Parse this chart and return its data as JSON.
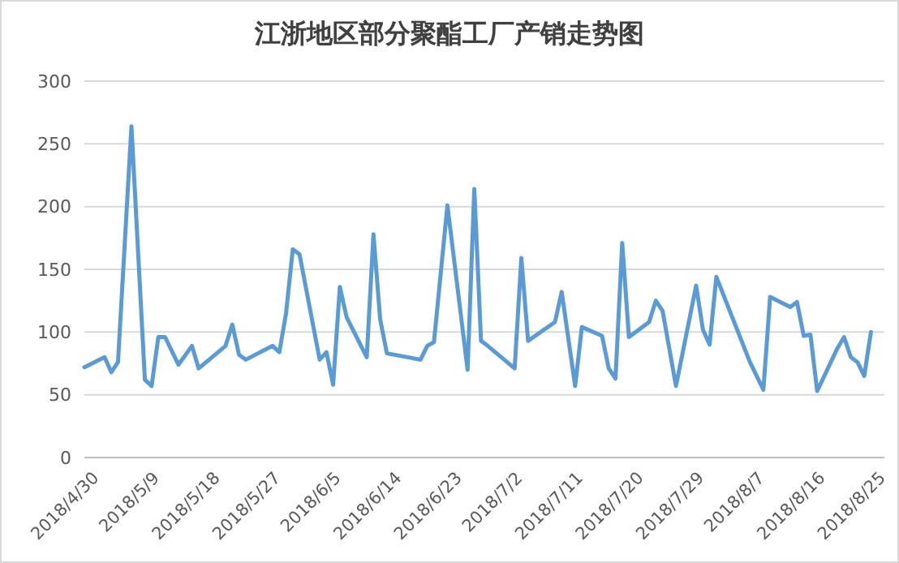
{
  "chart_data": {
    "type": "line",
    "title": "江浙地区部分聚酯工厂产销走势图",
    "x": [
      "2018-04-28",
      "2018-05-01",
      "2018-05-02",
      "2018-05-03",
      "2018-05-05",
      "2018-05-07",
      "2018-05-08",
      "2018-05-09",
      "2018-05-10",
      "2018-05-12",
      "2018-05-14",
      "2018-05-15",
      "2018-05-19",
      "2018-05-20",
      "2018-05-21",
      "2018-05-22",
      "2018-05-26",
      "2018-05-27",
      "2018-05-28",
      "2018-05-29",
      "2018-05-30",
      "2018-06-02",
      "2018-06-03",
      "2018-06-04",
      "2018-06-05",
      "2018-06-06",
      "2018-06-09",
      "2018-06-10",
      "2018-06-11",
      "2018-06-12",
      "2018-06-17",
      "2018-06-18",
      "2018-06-19",
      "2018-06-21",
      "2018-06-24",
      "2018-06-25",
      "2018-06-26",
      "2018-06-27",
      "2018-07-01",
      "2018-07-02",
      "2018-07-03",
      "2018-07-07",
      "2018-07-08",
      "2018-07-10",
      "2018-07-11",
      "2018-07-14",
      "2018-07-15",
      "2018-07-16",
      "2018-07-17",
      "2018-07-18",
      "2018-07-21",
      "2018-07-22",
      "2018-07-23",
      "2018-07-25",
      "2018-07-28",
      "2018-07-29",
      "2018-07-30",
      "2018-07-31",
      "2018-08-05",
      "2018-08-07",
      "2018-08-08",
      "2018-08-11",
      "2018-08-12",
      "2018-08-13",
      "2018-08-14",
      "2018-08-15",
      "2018-08-18",
      "2018-08-19",
      "2018-08-20",
      "2018-08-21",
      "2018-08-22",
      "2018-08-23"
    ],
    "series": [
      {
        "color": "#5b9bd5",
        "values": [
          72,
          80,
          68,
          76,
          264,
          62,
          57,
          96,
          96,
          74,
          89,
          71,
          89,
          106,
          82,
          78,
          89,
          84,
          115,
          166,
          162,
          78,
          84,
          58,
          136,
          112,
          80,
          178,
          110,
          83,
          78,
          89,
          92,
          201,
          70,
          214,
          93,
          89,
          71,
          159,
          93,
          108,
          132,
          57,
          104,
          97,
          71,
          63,
          171,
          96,
          108,
          125,
          117,
          57,
          137,
          102,
          90,
          144,
          76,
          54,
          128,
          120,
          124,
          97,
          98,
          53,
          87,
          96,
          80,
          76,
          65,
          100
        ]
      }
    ],
    "xlim": [
      "2018-04-28",
      "2018-08-25"
    ],
    "xticks": [
      {
        "value": "2018-04-30",
        "label": "2018/4/30"
      },
      {
        "value": "2018-05-09",
        "label": "2018/5/9"
      },
      {
        "value": "2018-05-18",
        "label": "2018/5/18"
      },
      {
        "value": "2018-05-27",
        "label": "2018/5/27"
      },
      {
        "value": "2018-06-05",
        "label": "2018/6/5"
      },
      {
        "value": "2018-06-14",
        "label": "2018/6/14"
      },
      {
        "value": "2018-06-23",
        "label": "2018/6/23"
      },
      {
        "value": "2018-07-02",
        "label": "2018/7/2"
      },
      {
        "value": "2018-07-11",
        "label": "2018/7/11"
      },
      {
        "value": "2018-07-20",
        "label": "2018/7/20"
      },
      {
        "value": "2018-07-29",
        "label": "2018/7/29"
      },
      {
        "value": "2018-08-07",
        "label": "2018/8/7"
      },
      {
        "value": "2018-08-16",
        "label": "2018/8/16"
      },
      {
        "value": "2018-08-25",
        "label": "2018/8/25"
      }
    ],
    "ylim": [
      0,
      300
    ],
    "yticks": [
      0,
      50,
      100,
      150,
      200,
      250,
      300
    ],
    "grid": "y",
    "marker": "none",
    "line_style": "solid"
  }
}
